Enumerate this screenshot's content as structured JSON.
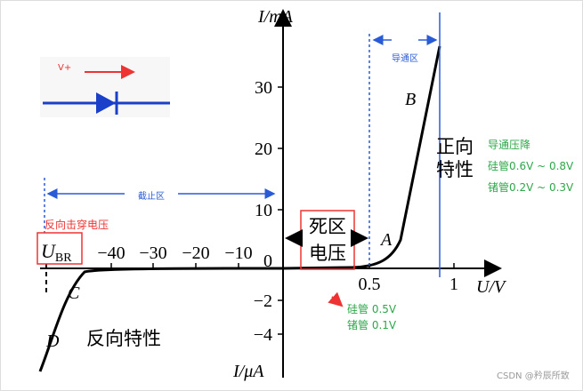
{
  "y_axis_label": "I/mA",
  "y_axis_label_neg": "I/μA",
  "x_axis_label": "U/V",
  "y_ticks_pos": [
    "30",
    "20",
    "10",
    "0"
  ],
  "y_ticks_neg": [
    "−2",
    "−4"
  ],
  "x_ticks_neg": [
    "−40",
    "−30",
    "−20",
    "−10"
  ],
  "x_ticks_pos": [
    "0.5",
    "1"
  ],
  "points": {
    "A": "A",
    "B": "B",
    "C": "C",
    "D": "D"
  },
  "inset": {
    "label": "V+"
  },
  "conduction_region": "导通区",
  "cutoff_region": "截止区",
  "dead_zone": [
    "死区",
    "电压"
  ],
  "breakdown": {
    "symbol": "U",
    "subscript": "BR",
    "label": "反向击穿电压"
  },
  "forward": [
    "正向",
    "特性"
  ],
  "reverse": "反向特性",
  "forward_drop": [
    "导通压降",
    "硅管0.6V ~ 0.8V",
    "锗管0.2V ~ 0.3V"
  ],
  "dead_zone_values": [
    "硅管 0.5V",
    "锗管 0.1V"
  ],
  "watermark": "CSDN @矜辰所致"
}
